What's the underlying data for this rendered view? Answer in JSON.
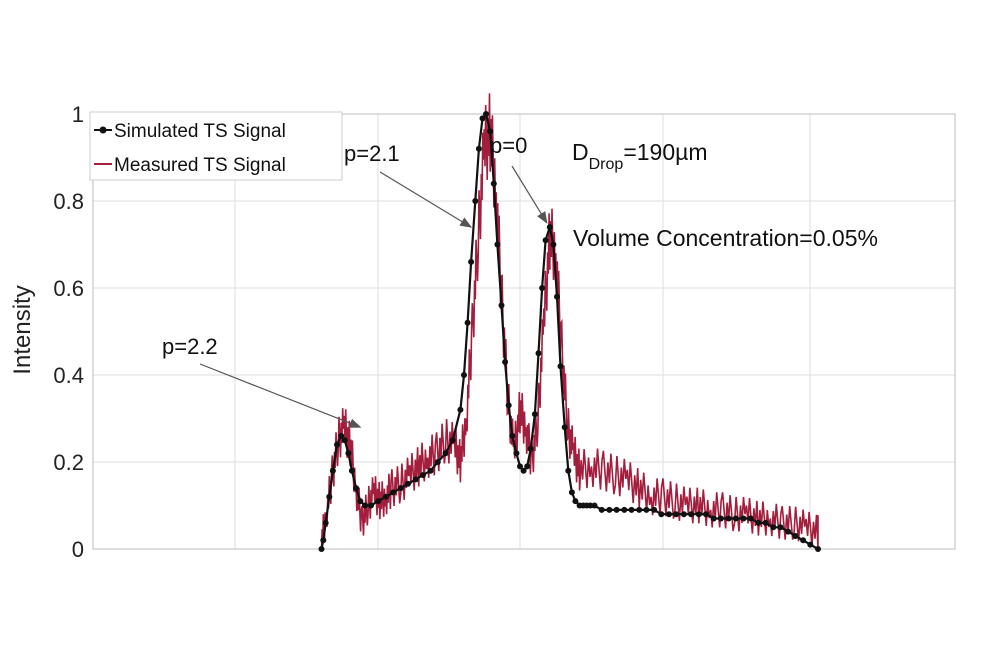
{
  "chart_data": {
    "type": "line",
    "title": "",
    "xlabel": "",
    "ylabel": "Intensity",
    "xlim": [
      0,
      1
    ],
    "ylim": [
      0,
      1
    ],
    "yticks": [
      "0",
      "0.2",
      "0.4",
      "0.6",
      "0.8",
      "1"
    ],
    "xtick_labels_visible": false,
    "grid": true,
    "legend_position": "top-left",
    "colors": {
      "simulated": "#111111",
      "measured": "#a31d3c",
      "grid": "#dddddd",
      "axis": "#bbbbbb"
    },
    "series": [
      {
        "name": "Simulated TS Signal",
        "style": "line-with-dot-markers",
        "x": [
          0.167,
          0.17,
          0.174,
          0.18,
          0.186,
          0.193,
          0.2,
          0.206,
          0.212,
          0.218,
          0.225,
          0.232,
          0.24,
          0.25,
          0.262,
          0.275,
          0.287,
          0.3,
          0.312,
          0.325,
          0.337,
          0.35,
          0.362,
          0.375,
          0.387,
          0.4,
          0.406,
          0.412,
          0.418,
          0.425,
          0.431,
          0.437,
          0.443,
          0.45,
          0.456,
          0.462,
          0.469,
          0.475,
          0.481,
          0.487,
          0.494,
          0.5,
          0.506,
          0.512,
          0.518,
          0.525,
          0.531,
          0.537,
          0.543,
          0.55,
          0.556,
          0.562,
          0.568,
          0.575,
          0.581,
          0.587,
          0.593,
          0.6,
          0.606,
          0.612,
          0.618,
          0.625,
          0.637,
          0.65,
          0.662,
          0.675,
          0.687,
          0.7,
          0.712,
          0.725,
          0.737,
          0.75,
          0.762,
          0.775,
          0.787,
          0.8,
          0.812,
          0.825,
          0.837,
          0.85,
          0.862,
          0.875,
          0.887,
          0.9,
          0.912,
          0.925,
          0.937,
          0.95,
          0.962,
          0.975,
          0.987,
          1.0
        ],
        "y": [
          0.0,
          0.02,
          0.06,
          0.12,
          0.18,
          0.24,
          0.26,
          0.25,
          0.22,
          0.18,
          0.14,
          0.11,
          0.1,
          0.1,
          0.11,
          0.12,
          0.13,
          0.14,
          0.15,
          0.16,
          0.17,
          0.18,
          0.2,
          0.22,
          0.25,
          0.32,
          0.4,
          0.52,
          0.66,
          0.8,
          0.92,
          0.99,
          1.0,
          0.96,
          0.84,
          0.7,
          0.56,
          0.43,
          0.33,
          0.26,
          0.22,
          0.19,
          0.18,
          0.19,
          0.23,
          0.31,
          0.45,
          0.6,
          0.71,
          0.74,
          0.7,
          0.58,
          0.42,
          0.28,
          0.18,
          0.13,
          0.11,
          0.1,
          0.1,
          0.1,
          0.1,
          0.1,
          0.09,
          0.09,
          0.09,
          0.09,
          0.09,
          0.09,
          0.09,
          0.09,
          0.08,
          0.08,
          0.08,
          0.08,
          0.08,
          0.08,
          0.08,
          0.07,
          0.07,
          0.07,
          0.07,
          0.07,
          0.07,
          0.06,
          0.06,
          0.05,
          0.05,
          0.04,
          0.03,
          0.02,
          0.01,
          0.0
        ]
      },
      {
        "name": "Measured TS Signal",
        "style": "noisy-line",
        "x": [
          0.167,
          0.175,
          0.185,
          0.195,
          0.205,
          0.215,
          0.225,
          0.235,
          0.245,
          0.255,
          0.265,
          0.275,
          0.285,
          0.3,
          0.315,
          0.33,
          0.345,
          0.36,
          0.375,
          0.39,
          0.4,
          0.41,
          0.42,
          0.43,
          0.44,
          0.45,
          0.46,
          0.47,
          0.48,
          0.49,
          0.5,
          0.51,
          0.52,
          0.53,
          0.54,
          0.55,
          0.56,
          0.57,
          0.58,
          0.59,
          0.6,
          0.62,
          0.64,
          0.66,
          0.68,
          0.7,
          0.72,
          0.74,
          0.76,
          0.78,
          0.8,
          0.82,
          0.84,
          0.86,
          0.88,
          0.9,
          0.92,
          0.94,
          0.96,
          0.98,
          1.0
        ],
        "y": [
          0.02,
          0.08,
          0.17,
          0.25,
          0.28,
          0.24,
          0.14,
          0.06,
          0.1,
          0.13,
          0.11,
          0.12,
          0.14,
          0.15,
          0.17,
          0.19,
          0.21,
          0.22,
          0.25,
          0.24,
          0.2,
          0.3,
          0.5,
          0.72,
          0.92,
          0.96,
          0.82,
          0.56,
          0.34,
          0.22,
          0.32,
          0.28,
          0.2,
          0.3,
          0.52,
          0.72,
          0.68,
          0.46,
          0.28,
          0.22,
          0.18,
          0.19,
          0.18,
          0.17,
          0.16,
          0.14,
          0.12,
          0.12,
          0.11,
          0.1,
          0.1,
          0.09,
          0.09,
          0.08,
          0.08,
          0.07,
          0.07,
          0.06,
          0.06,
          0.05,
          0.04
        ]
      }
    ],
    "annotations": [
      {
        "id": "p22",
        "text": "p=2.2",
        "target": [
          0.232,
          0.28
        ]
      },
      {
        "id": "p21",
        "text": "p=2.1",
        "target": [
          0.418,
          0.74
        ]
      },
      {
        "id": "p0",
        "text": "p=0",
        "target": [
          0.545,
          0.75
        ]
      }
    ],
    "info_text": {
      "d_main": "D",
      "d_sub": "Drop",
      "d_value": "=190µm",
      "concentration": "Volume Concentration=0.05%"
    }
  }
}
